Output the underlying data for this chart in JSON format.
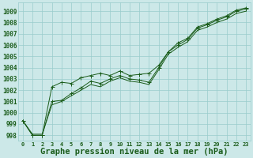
{
  "xlabel": "Graphe pression niveau de la mer (hPa)",
  "background_color": "#cce8e8",
  "grid_color": "#99cccc",
  "line_color": "#1a5c1a",
  "x_values": [
    0,
    1,
    2,
    3,
    4,
    5,
    6,
    7,
    8,
    9,
    10,
    11,
    12,
    13,
    14,
    15,
    16,
    17,
    18,
    19,
    20,
    21,
    22,
    23
  ],
  "series": [
    [
      999.3,
      998.0,
      998.0,
      1001.0,
      1001.1,
      1001.7,
      1002.2,
      1002.8,
      1002.6,
      1003.0,
      1003.3,
      1003.0,
      1002.9,
      1002.7,
      1004.0,
      1005.4,
      1006.0,
      1006.5,
      1007.5,
      1007.8,
      1008.2,
      1008.5,
      1009.0,
      1009.2
    ],
    [
      999.3,
      998.1,
      998.1,
      1000.7,
      1001.0,
      1001.5,
      1002.0,
      1002.5,
      1002.3,
      1002.8,
      1003.1,
      1002.8,
      1002.7,
      1002.5,
      1003.8,
      1005.2,
      1005.8,
      1006.3,
      1007.3,
      1007.6,
      1008.0,
      1008.3,
      1008.8,
      1009.0
    ],
    [
      999.3,
      998.0,
      998.0,
      1002.3,
      1002.7,
      1002.6,
      1003.1,
      1003.3,
      1003.5,
      1003.3,
      1003.7,
      1003.3,
      1003.4,
      1003.5,
      1004.2,
      1005.4,
      1006.2,
      1006.6,
      1007.6,
      1007.9,
      1008.3,
      1008.6,
      1009.1,
      1009.3
    ]
  ],
  "marker_series_indices": [
    0,
    2
  ],
  "ylim": [
    997.5,
    1009.8
  ],
  "yticks": [
    998,
    999,
    1000,
    1001,
    1002,
    1003,
    1004,
    1005,
    1006,
    1007,
    1008,
    1009
  ],
  "xlim": [
    -0.5,
    23.5
  ],
  "xticks": [
    0,
    1,
    2,
    3,
    4,
    5,
    6,
    7,
    8,
    9,
    10,
    11,
    12,
    13,
    14,
    15,
    16,
    17,
    18,
    19,
    20,
    21,
    22,
    23
  ],
  "xtick_labels": [
    "0",
    "1",
    "2",
    "3",
    "4",
    "5",
    "6",
    "7",
    "8",
    "9",
    "10",
    "11",
    "12",
    "13",
    "14",
    "15",
    "16",
    "17",
    "18",
    "19",
    "20",
    "21",
    "22",
    "23"
  ],
  "ytick_fontsize": 5.5,
  "xtick_fontsize": 5.0,
  "xlabel_fontsize": 7.5,
  "linewidth": 0.7,
  "markersize": 1.8
}
